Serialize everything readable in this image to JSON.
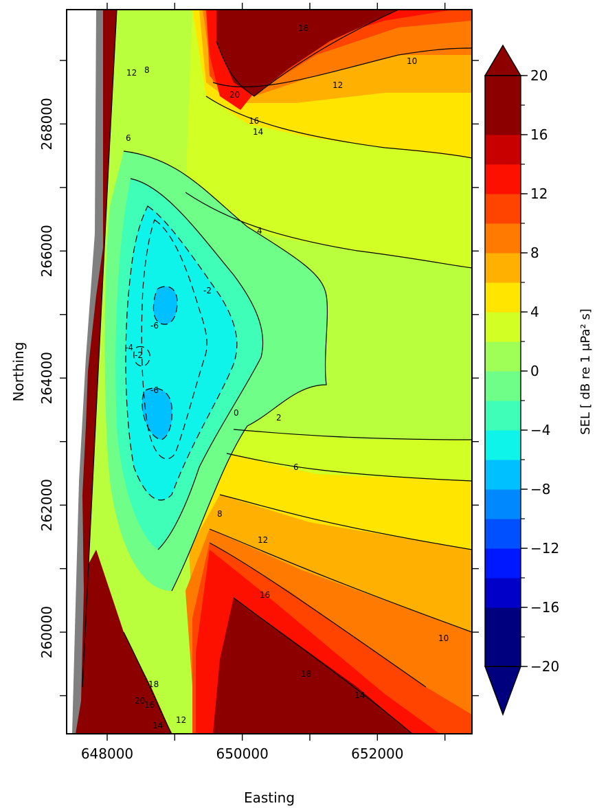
{
  "chart_data": {
    "type": "contour",
    "xlabel": "Easting",
    "ylabel": "Northing",
    "xlim": [
      647400,
      653400
    ],
    "ylim": [
      258400,
      269800
    ],
    "xticks": [
      {
        "value": 648000,
        "label": "648000"
      },
      {
        "value": 650000,
        "label": "650000"
      },
      {
        "value": 652000,
        "label": "652000"
      }
    ],
    "xticks_minor": [
      649000,
      651000,
      653000
    ],
    "yticks": [
      {
        "value": 260000,
        "label": "260000"
      },
      {
        "value": 262000,
        "label": "262000"
      },
      {
        "value": 264000,
        "label": "264000"
      },
      {
        "value": 266000,
        "label": "266000"
      },
      {
        "value": 268000,
        "label": "268000"
      }
    ],
    "yticks_minor": [
      259000,
      261000,
      263000,
      265000,
      267000,
      269000
    ],
    "colorbar": {
      "label": "SEL [ dB re 1 μPa² s]",
      "min": -20,
      "max": 20,
      "step": 2,
      "extend": "both",
      "tick_values": [
        20,
        16,
        12,
        8,
        4,
        0,
        -4,
        -8,
        -12,
        -16,
        -20
      ],
      "tick_labels": [
        "20",
        "16",
        "12",
        "8",
        "4",
        "0",
        "−4",
        "−8",
        "−12",
        "−16",
        "−20"
      ],
      "colors": [
        "#00007f",
        "#0000c8",
        "#0018ff",
        "#0050ff",
        "#0088ff",
        "#00c0ff",
        "#0ef4ea",
        "#3fffb8",
        "#6fff88",
        "#a0ff56",
        "#d2ff24",
        "#ffe500",
        "#ffb000",
        "#ff7a00",
        "#ff4400",
        "#fe1000",
        "#c80000",
        "#8c0000"
      ]
    },
    "contour_levels": [
      -6,
      -4,
      -2,
      0,
      2,
      4,
      6,
      8,
      10,
      12,
      14,
      16,
      18,
      20
    ],
    "negative_contour_style": "dashed",
    "contour_labels": [
      "12",
      "8",
      "6",
      "4",
      "2",
      "-2",
      "-6",
      "-4",
      "-2",
      "-6",
      "0",
      "4",
      "6",
      "8",
      "12",
      "16",
      "18",
      "20",
      "16",
      "14",
      "12",
      "10",
      "18",
      "16",
      "14",
      "12",
      "10",
      "14",
      "16",
      "18",
      "20"
    ],
    "land_mask_color": "#808080"
  }
}
